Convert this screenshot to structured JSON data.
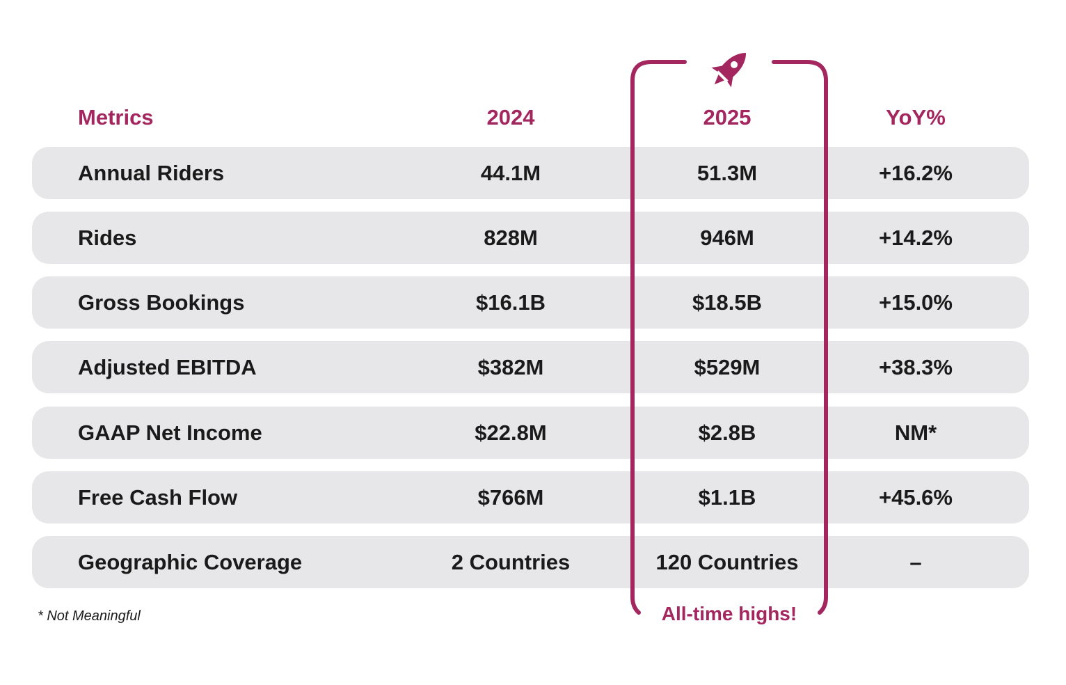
{
  "headers": {
    "metrics": "Metrics",
    "y2024": "2024",
    "y2025": "2025",
    "yoy": "YoY%"
  },
  "rows": [
    {
      "metric": "Annual Riders",
      "y2024": "44.1M",
      "y2025": "51.3M",
      "yoy": "+16.2%"
    },
    {
      "metric": "Rides",
      "y2024": "828M",
      "y2025": "946M",
      "yoy": "+14.2%"
    },
    {
      "metric": "Gross Bookings",
      "y2024": "$16.1B",
      "y2025": "$18.5B",
      "yoy": "+15.0%"
    },
    {
      "metric": "Adjusted EBITDA",
      "y2024": "$382M",
      "y2025": "$529M",
      "yoy": "+38.3%"
    },
    {
      "metric": "GAAP Net Income",
      "y2024": "$22.8M",
      "y2025": "$2.8B",
      "yoy": "NM*"
    },
    {
      "metric": "Free Cash Flow",
      "y2024": "$766M",
      "y2025": "$1.1B",
      "yoy": "+45.6%"
    },
    {
      "metric": "Geographic Coverage",
      "y2024": "2 Countries",
      "y2025": "120 Countries",
      "yoy": "–"
    }
  ],
  "footnote": "* Not Meaningful",
  "highlight": {
    "label": "All-time highs!",
    "icon": "rocket-icon",
    "color": "#A3265F"
  },
  "colors": {
    "accent": "#A3265F",
    "row_bg": "#E7E6E8",
    "text": "#1a1a1a"
  },
  "chart_data": {
    "type": "table",
    "title": "",
    "columns": [
      "Metrics",
      "2024",
      "2025",
      "YoY%"
    ],
    "rows": [
      [
        "Annual Riders",
        "44.1M",
        "51.3M",
        "+16.2%"
      ],
      [
        "Rides",
        "828M",
        "946M",
        "+14.2%"
      ],
      [
        "Gross Bookings",
        "$16.1B",
        "$18.5B",
        "+15.0%"
      ],
      [
        "Adjusted EBITDA",
        "$382M",
        "$529M",
        "+38.3%"
      ],
      [
        "GAAP Net Income",
        "$22.8M",
        "$2.8B",
        "NM*"
      ],
      [
        "Free Cash Flow",
        "$766M",
        "$1.1B",
        "+45.6%"
      ],
      [
        "Geographic Coverage",
        "2 Countries",
        "120 Countries",
        "–"
      ]
    ],
    "highlighted_column": "2025",
    "annotation": "All-time highs!",
    "footnote": "* Not Meaningful"
  }
}
